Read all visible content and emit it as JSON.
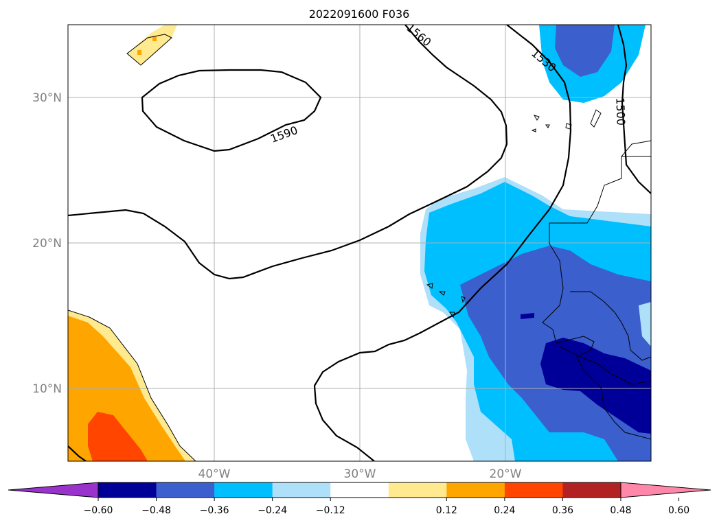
{
  "title": "2022091600 F036",
  "latitude_labels": [
    "30°N",
    "20°N",
    "10°N"
  ],
  "longitude_labels": [
    "40°W",
    "30°W",
    "20°W"
  ],
  "contour_labels": [
    "1560",
    "1530",
    "1500",
    "1590"
  ],
  "colorbar": {
    "ticks": [
      "−0.60",
      "−0.48",
      "−0.36",
      "−0.24",
      "−0.12",
      "0.12",
      "0.24",
      "0.36",
      "0.48",
      "0.60"
    ],
    "colors": [
      "#9933cc",
      "#000099",
      "#3b5fcd",
      "#00bfff",
      "#aee0fa",
      "#ffffff",
      "#ffea8f",
      "#ffa500",
      "#ff4500",
      "#b22222",
      "#ff88aa"
    ]
  },
  "colors": {
    "darkest_blue": "#000099",
    "royal_blue": "#3b5fcd",
    "deep_sky_blue": "#00bfff",
    "light_blue": "#aee0fa",
    "light_yellow": "#ffea8f",
    "orange": "#ffa500",
    "orange_red": "#ff4500"
  }
}
